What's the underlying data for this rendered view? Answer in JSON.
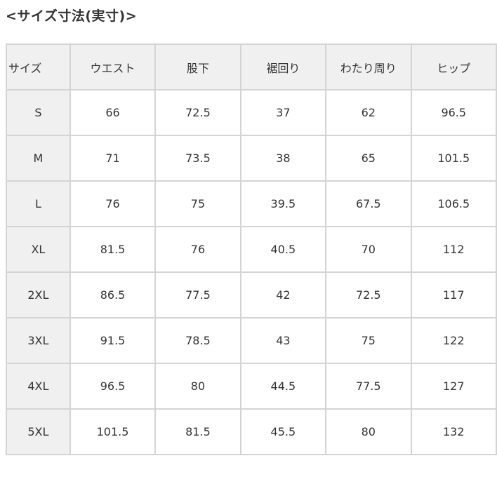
{
  "title": "<サイズ寸法(実寸)>",
  "table": {
    "headers": [
      "サイズ",
      "ウエスト",
      "股下",
      "裾回り",
      "わたり周り",
      "ヒップ"
    ],
    "rows": [
      [
        "S",
        "66",
        "72.5",
        "37",
        "62",
        "96.5"
      ],
      [
        "M",
        "71",
        "73.5",
        "38",
        "65",
        "101.5"
      ],
      [
        "L",
        "76",
        "75",
        "39.5",
        "67.5",
        "106.5"
      ],
      [
        "XL",
        "81.5",
        "76",
        "40.5",
        "70",
        "112"
      ],
      [
        "2XL",
        "86.5",
        "77.5",
        "42",
        "72.5",
        "117"
      ],
      [
        "3XL",
        "91.5",
        "78.5",
        "43",
        "75",
        "122"
      ],
      [
        "4XL",
        "96.5",
        "80",
        "44.5",
        "77.5",
        "127"
      ],
      [
        "5XL",
        "101.5",
        "81.5",
        "45.5",
        "80",
        "132"
      ]
    ]
  }
}
